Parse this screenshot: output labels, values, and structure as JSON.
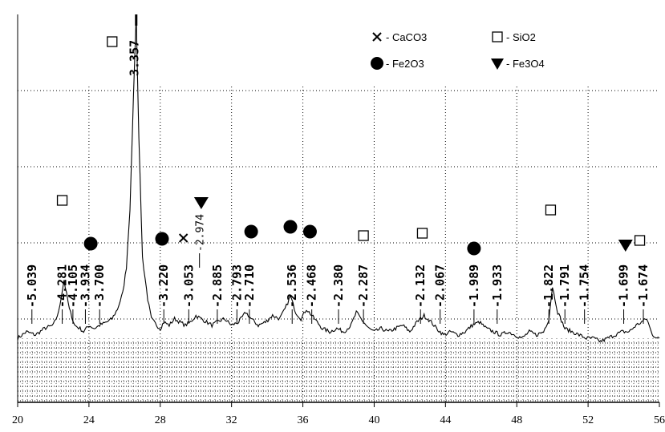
{
  "chart_data": {
    "type": "line",
    "title": "",
    "xlabel": "",
    "ylabel": "",
    "xlim": [
      20,
      56
    ],
    "ylim": [
      0,
      100
    ],
    "x_ticks": [
      "20",
      "24",
      "28",
      "32",
      "36",
      "40",
      "44",
      "48",
      "52",
      "56"
    ],
    "grid": "dotted",
    "legend": {
      "placement": "top-right",
      "entries": [
        {
          "symbol": "cross",
          "text": "- CaCO3"
        },
        {
          "symbol": "square",
          "text": "- SiO2"
        },
        {
          "symbol": "circle",
          "text": "- Fe2O3"
        },
        {
          "symbol": "triangle-down",
          "text": "- Fe3O4"
        }
      ]
    },
    "series": [
      {
        "x": [
          20,
          20.5,
          21,
          21.5,
          22,
          22.3,
          22.6,
          22.9,
          23.2,
          23.5,
          23.7,
          24.0,
          24.3,
          24.6,
          25.0,
          25.3,
          25.6,
          25.9,
          26.1,
          26.3,
          26.5,
          26.65,
          26.8,
          27.0,
          27.3,
          27.5,
          27.8,
          28.0,
          28.2,
          28.5,
          28.8,
          29.1,
          29.4,
          29.7,
          30.0,
          30.3,
          30.6,
          30.9,
          31.2,
          31.6,
          32.0,
          32.4,
          32.8,
          33.1,
          33.5,
          33.9,
          34.3,
          34.7,
          35.0,
          35.3,
          35.6,
          35.9,
          36.2,
          36.5,
          36.8,
          37.1,
          37.5,
          37.9,
          38.3,
          38.7,
          39.0,
          39.4,
          39.7,
          40.0,
          40.4,
          40.8,
          41.2,
          41.6,
          42.0,
          42.4,
          42.8,
          43.2,
          43.5,
          43.9,
          44.3,
          44.7,
          45.1,
          45.5,
          45.9,
          46.3,
          46.7,
          47.1,
          47.5,
          47.9,
          48.3,
          48.7,
          49.1,
          49.5,
          49.8,
          50.0,
          50.3,
          50.7,
          51.1,
          51.5,
          51.9,
          52.3,
          52.7,
          53.1,
          53.5,
          53.9,
          54.3,
          54.7,
          55.0,
          55.3,
          55.6,
          56.0
        ],
        "values": [
          0,
          2,
          1,
          3,
          4,
          8,
          18,
          9,
          4,
          3,
          2,
          4,
          3,
          4,
          5,
          6,
          9,
          14,
          22,
          40,
          75,
          100,
          62,
          25,
          12,
          6,
          4,
          3,
          5,
          4,
          6,
          5,
          4,
          5,
          7,
          6,
          5,
          4,
          5,
          6,
          4,
          5,
          8,
          6,
          4,
          5,
          7,
          6,
          9,
          13,
          8,
          6,
          9,
          7,
          5,
          3,
          2,
          3,
          2,
          4,
          8,
          5,
          3,
          2,
          3,
          2,
          3,
          4,
          2,
          5,
          7,
          5,
          3,
          1,
          2,
          1,
          2,
          4,
          5,
          3,
          2,
          1,
          2,
          1,
          0,
          2,
          1,
          2,
          6,
          16,
          8,
          3,
          2,
          1,
          0,
          0,
          -1,
          0,
          1,
          2,
          2,
          4,
          5,
          6,
          1,
          0
        ]
      }
    ],
    "peak_labels": [
      {
        "x": 20.8,
        "value": "5.039"
      },
      {
        "x": 22.5,
        "value": "4.281"
      },
      {
        "x": 23.1,
        "value": "4.105"
      },
      {
        "x": 23.8,
        "value": "3.934"
      },
      {
        "x": 24.6,
        "value": "3.700"
      },
      {
        "x": 26.5,
        "value": "3.357"
      },
      {
        "x": 28.2,
        "value": "3.220"
      },
      {
        "x": 29.6,
        "value": "3.053"
      },
      {
        "x": 30.2,
        "value": "2.974"
      },
      {
        "x": 31.2,
        "value": "2.885"
      },
      {
        "x": 32.3,
        "value": "2.793"
      },
      {
        "x": 33.0,
        "value": "2.710"
      },
      {
        "x": 35.4,
        "value": "2.536"
      },
      {
        "x": 36.5,
        "value": "2.468"
      },
      {
        "x": 38.0,
        "value": "2.380"
      },
      {
        "x": 39.4,
        "value": "2.287"
      },
      {
        "x": 42.6,
        "value": "2.132"
      },
      {
        "x": 43.7,
        "value": "2.067"
      },
      {
        "x": 45.6,
        "value": "1.989"
      },
      {
        "x": 46.9,
        "value": "1.933"
      },
      {
        "x": 49.8,
        "value": "1.822"
      },
      {
        "x": 50.7,
        "value": "1.791"
      },
      {
        "x": 51.8,
        "value": "1.754"
      },
      {
        "x": 54.0,
        "value": "1.699"
      },
      {
        "x": 55.1,
        "value": "1.674"
      }
    ],
    "phase_markers": [
      {
        "phase": "SiO2",
        "symbol": "square",
        "x": 22.5
      },
      {
        "phase": "SiO2",
        "symbol": "square",
        "x": 25.3
      },
      {
        "phase": "Fe2O3",
        "symbol": "circle",
        "x": 24.1
      },
      {
        "phase": "Fe2O3",
        "symbol": "circle",
        "x": 28.1
      },
      {
        "phase": "CaCO3",
        "symbol": "cross",
        "x": 29.3
      },
      {
        "phase": "Fe3O4",
        "symbol": "triangle-down",
        "x": 30.3
      },
      {
        "phase": "Fe2O3",
        "symbol": "circle",
        "x": 33.1
      },
      {
        "phase": "Fe2O3",
        "symbol": "circle",
        "x": 35.3
      },
      {
        "phase": "Fe2O3",
        "symbol": "circle",
        "x": 36.4
      },
      {
        "phase": "SiO2",
        "symbol": "square",
        "x": 39.4
      },
      {
        "phase": "SiO2",
        "symbol": "square",
        "x": 42.7
      },
      {
        "phase": "Fe2O3",
        "symbol": "circle",
        "x": 45.6
      },
      {
        "phase": "SiO2",
        "symbol": "square",
        "x": 49.9
      },
      {
        "phase": "Fe3O4",
        "symbol": "triangle-down",
        "x": 54.1
      },
      {
        "phase": "SiO2",
        "symbol": "square",
        "x": 54.9
      }
    ]
  }
}
